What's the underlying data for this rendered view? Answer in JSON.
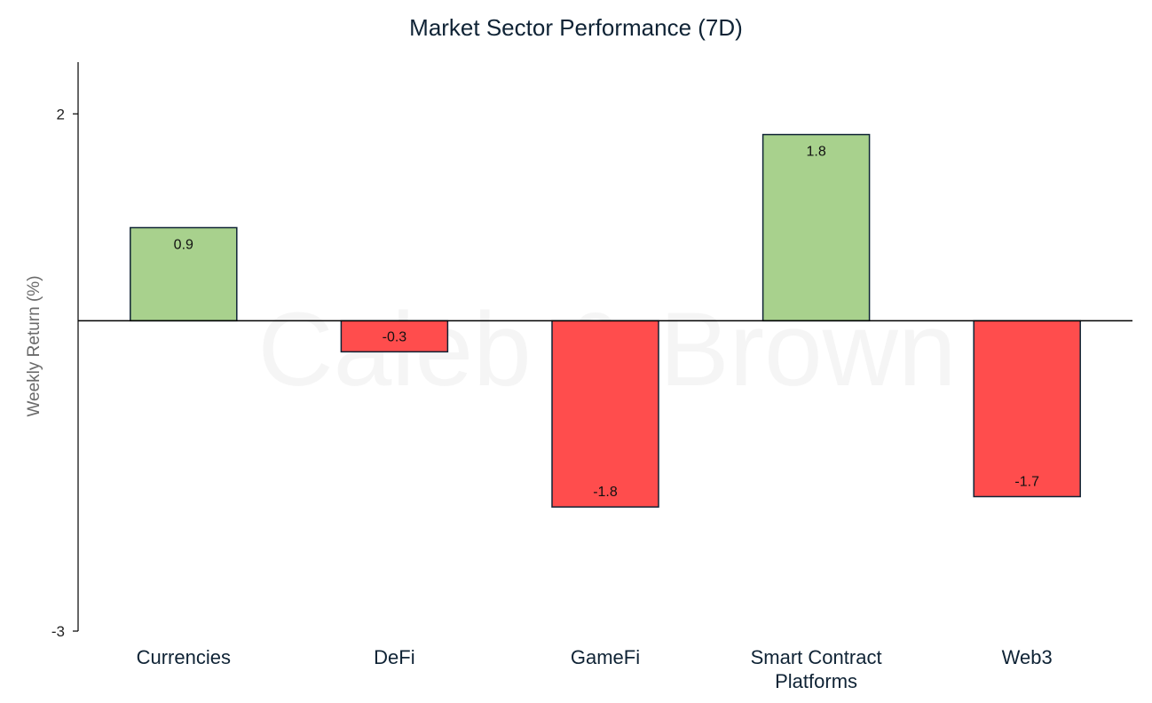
{
  "chart_data": {
    "type": "bar",
    "title": "Market Sector Performance (7D)",
    "xlabel": "",
    "ylabel": "Weekly  Return (%)",
    "categories": [
      "Currencies",
      "DeFi",
      "GameFi",
      "Smart Contract Platforms",
      "Web3"
    ],
    "category_lines": [
      [
        "Currencies"
      ],
      [
        "DeFi"
      ],
      [
        "GameFi"
      ],
      [
        "Smart Contract",
        "Platforms"
      ],
      [
        "Web3"
      ]
    ],
    "values": [
      0.9,
      -0.3,
      -1.8,
      1.8,
      -1.7
    ],
    "value_labels": [
      "0.9",
      "-0.3",
      "-1.8",
      "1.8",
      "-1.7"
    ],
    "ylim": [
      -3,
      2.5
    ],
    "yticks": [
      2,
      -3
    ],
    "ytick_labels": [
      "2",
      "-3"
    ],
    "grid": false,
    "legend": "none"
  },
  "colors": {
    "positive": "#a8d18d",
    "negative": "#ff4d4d",
    "bar_stroke": "#0f2335",
    "axis": "#000000"
  },
  "watermark": "Caleb & Brown"
}
